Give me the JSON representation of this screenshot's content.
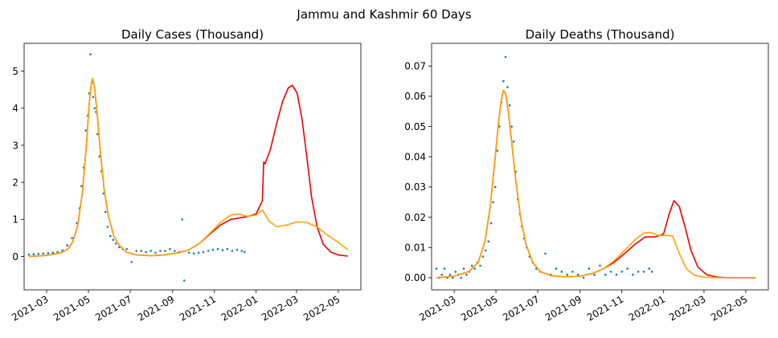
{
  "figure": {
    "title": "Jammu and Kashmir 60 Days"
  },
  "colors": {
    "observed": "#1f77b4",
    "model_red": "#ee0000",
    "model_orange": "#ffa500"
  },
  "chart_data": [
    {
      "type": "line",
      "title": "Daily Cases (Thousand)",
      "xlabel": "",
      "ylabel": "",
      "x_axis": "date",
      "xlim": [
        "2021-01-27",
        "2022-06-03"
      ],
      "ylim": [
        -0.9,
        5.75
      ],
      "x_ticks": [
        "2021-03-01",
        "2021-05-01",
        "2021-07-01",
        "2021-09-01",
        "2021-11-01",
        "2022-01-01",
        "2022-03-01",
        "2022-05-01"
      ],
      "x_tick_labels": [
        "2021-03",
        "2021-05",
        "2021-07",
        "2021-09",
        "2021-11",
        "2022-01",
        "2022-03",
        "2022-05"
      ],
      "y_ticks": [
        0,
        1,
        2,
        3,
        4,
        5
      ],
      "y_tick_labels": [
        "0",
        "1",
        "2",
        "3",
        "4",
        "5"
      ],
      "series": [
        {
          "kind": "scatter",
          "color_key": "observed",
          "x": [
            "2021-02-03",
            "2021-02-10",
            "2021-02-17",
            "2021-02-24",
            "2021-03-03",
            "2021-03-10",
            "2021-03-17",
            "2021-03-24",
            "2021-03-31",
            "2021-04-07",
            "2021-04-14",
            "2021-04-18",
            "2021-04-21",
            "2021-04-24",
            "2021-04-27",
            "2021-04-30",
            "2021-05-02",
            "2021-05-04",
            "2021-05-06",
            "2021-05-08",
            "2021-05-10",
            "2021-05-12",
            "2021-05-14",
            "2021-05-17",
            "2021-05-20",
            "2021-05-23",
            "2021-05-26",
            "2021-05-29",
            "2021-06-02",
            "2021-06-06",
            "2021-06-10",
            "2021-06-15",
            "2021-06-20",
            "2021-06-26",
            "2021-07-03",
            "2021-07-10",
            "2021-07-17",
            "2021-07-24",
            "2021-07-31",
            "2021-08-07",
            "2021-08-14",
            "2021-08-21",
            "2021-08-28",
            "2021-09-04",
            "2021-09-11",
            "2021-09-15",
            "2021-09-18",
            "2021-09-25",
            "2021-10-02",
            "2021-10-09",
            "2021-10-16",
            "2021-10-23",
            "2021-10-30",
            "2021-11-06",
            "2021-11-13",
            "2021-11-20",
            "2021-11-27",
            "2021-12-04",
            "2021-12-11",
            "2021-12-15"
          ],
          "values": [
            0.05,
            0.06,
            0.07,
            0.08,
            0.09,
            0.1,
            0.12,
            0.16,
            0.3,
            0.5,
            0.9,
            1.3,
            1.9,
            2.4,
            3.4,
            3.8,
            4.4,
            5.45,
            4.7,
            4.3,
            4.0,
            3.9,
            3.3,
            2.7,
            2.3,
            1.7,
            1.2,
            0.8,
            0.55,
            0.45,
            0.35,
            0.25,
            0.2,
            0.2,
            -0.15,
            0.15,
            0.15,
            0.12,
            0.15,
            0.1,
            0.15,
            0.15,
            0.2,
            0.15,
            0.12,
            1.0,
            -0.65,
            0.1,
            0.08,
            0.1,
            0.12,
            0.15,
            0.18,
            0.2,
            0.17,
            0.2,
            0.15,
            0.18,
            0.15,
            0.12
          ]
        },
        {
          "kind": "line",
          "color_key": "model_red",
          "x": [
            "2021-02-03",
            "2021-03-01",
            "2021-03-22",
            "2021-04-01",
            "2021-04-08",
            "2021-04-15",
            "2021-04-22",
            "2021-04-28",
            "2021-05-02",
            "2021-05-05",
            "2021-05-07",
            "2021-05-10",
            "2021-05-14",
            "2021-05-19",
            "2021-05-24",
            "2021-05-30",
            "2021-06-07",
            "2021-06-15",
            "2021-06-25",
            "2021-07-10",
            "2021-08-01",
            "2021-08-20",
            "2021-09-10",
            "2021-09-25",
            "2021-10-10",
            "2021-10-25",
            "2021-11-10",
            "2021-11-25",
            "2021-12-08",
            "2021-12-20",
            "2022-01-01",
            "2022-01-10",
            "2022-01-12",
            "2022-01-14",
            "2022-01-22",
            "2022-01-31",
            "2022-02-09",
            "2022-02-17",
            "2022-02-23",
            "2022-03-02",
            "2022-03-09",
            "2022-03-16",
            "2022-03-23",
            "2022-03-31",
            "2022-04-09",
            "2022-04-20",
            "2022-05-01",
            "2022-05-15"
          ],
          "values": [
            0.0,
            0.03,
            0.1,
            0.2,
            0.4,
            0.8,
            1.7,
            3.0,
            4.1,
            4.65,
            4.8,
            4.55,
            3.8,
            2.7,
            1.8,
            1.1,
            0.55,
            0.3,
            0.12,
            0.04,
            0.02,
            0.04,
            0.1,
            0.18,
            0.35,
            0.6,
            0.85,
            1.0,
            1.04,
            1.08,
            1.15,
            1.5,
            2.55,
            2.5,
            2.9,
            3.6,
            4.2,
            4.55,
            4.62,
            4.4,
            3.7,
            2.7,
            1.6,
            0.8,
            0.33,
            0.12,
            0.04,
            0.01
          ]
        },
        {
          "kind": "line",
          "color_key": "model_orange",
          "x": [
            "2021-02-03",
            "2021-03-01",
            "2021-03-22",
            "2021-04-01",
            "2021-04-08",
            "2021-04-15",
            "2021-04-22",
            "2021-04-28",
            "2021-05-02",
            "2021-05-05",
            "2021-05-07",
            "2021-05-10",
            "2021-05-14",
            "2021-05-19",
            "2021-05-24",
            "2021-05-30",
            "2021-06-07",
            "2021-06-15",
            "2021-06-25",
            "2021-07-10",
            "2021-08-01",
            "2021-08-20",
            "2021-09-10",
            "2021-09-25",
            "2021-10-10",
            "2021-10-25",
            "2021-11-10",
            "2021-11-25",
            "2021-12-08",
            "2021-12-20",
            "2022-01-01",
            "2022-01-10",
            "2022-01-20",
            "2022-01-31",
            "2022-02-15",
            "2022-03-01",
            "2022-03-15",
            "2022-03-31",
            "2022-04-15",
            "2022-05-01",
            "2022-05-15"
          ],
          "values": [
            0.0,
            0.03,
            0.1,
            0.2,
            0.4,
            0.8,
            1.7,
            3.0,
            4.1,
            4.65,
            4.8,
            4.55,
            3.8,
            2.7,
            1.8,
            1.1,
            0.55,
            0.3,
            0.12,
            0.04,
            0.02,
            0.04,
            0.1,
            0.18,
            0.35,
            0.62,
            0.92,
            1.12,
            1.14,
            1.08,
            1.12,
            1.25,
            0.95,
            0.8,
            0.85,
            0.93,
            0.92,
            0.8,
            0.58,
            0.38,
            0.18
          ]
        }
      ]
    },
    {
      "type": "line",
      "title": "Daily Deaths (Thousand)",
      "xlabel": "",
      "ylabel": "",
      "x_axis": "date",
      "xlim": [
        "2021-01-27",
        "2022-06-03"
      ],
      "ylim": [
        -0.004,
        0.0775
      ],
      "x_ticks": [
        "2021-03-01",
        "2021-05-01",
        "2021-07-01",
        "2021-09-01",
        "2021-11-01",
        "2022-01-01",
        "2022-03-01",
        "2022-05-01"
      ],
      "x_tick_labels": [
        "2021-03",
        "2021-05",
        "2021-07",
        "2021-09",
        "2021-11",
        "2022-01",
        "2022-03",
        "2022-05"
      ],
      "y_ticks": [
        0.0,
        0.01,
        0.02,
        0.03,
        0.04,
        0.05,
        0.06,
        0.07
      ],
      "y_tick_labels": [
        "0.00",
        "0.01",
        "0.02",
        "0.03",
        "0.04",
        "0.05",
        "0.06",
        "0.07"
      ],
      "series": [
        {
          "kind": "scatter",
          "color_key": "observed",
          "x": [
            "2021-02-03",
            "2021-02-07",
            "2021-02-11",
            "2021-02-15",
            "2021-02-19",
            "2021-02-23",
            "2021-02-27",
            "2021-03-03",
            "2021-03-07",
            "2021-03-11",
            "2021-03-15",
            "2021-03-19",
            "2021-03-23",
            "2021-03-27",
            "2021-03-31",
            "2021-04-04",
            "2021-04-08",
            "2021-04-12",
            "2021-04-16",
            "2021-04-20",
            "2021-04-24",
            "2021-04-27",
            "2021-04-30",
            "2021-05-03",
            "2021-05-06",
            "2021-05-09",
            "2021-05-12",
            "2021-05-15",
            "2021-05-18",
            "2021-05-21",
            "2021-05-24",
            "2021-05-27",
            "2021-05-30",
            "2021-06-02",
            "2021-06-05",
            "2021-06-08",
            "2021-06-11",
            "2021-06-15",
            "2021-06-19",
            "2021-06-24",
            "2021-06-29",
            "2021-07-05",
            "2021-07-12",
            "2021-07-20",
            "2021-07-28",
            "2021-08-05",
            "2021-08-13",
            "2021-08-21",
            "2021-08-29",
            "2021-09-06",
            "2021-09-14",
            "2021-09-22",
            "2021-09-30",
            "2021-10-08",
            "2021-10-16",
            "2021-10-24",
            "2021-11-01",
            "2021-11-09",
            "2021-11-17",
            "2021-11-25",
            "2021-12-03",
            "2021-12-11",
            "2021-12-15"
          ],
          "values": [
            0.003,
            0.0,
            0.001,
            0.003,
            0.0,
            0.001,
            0.0,
            0.002,
            0.001,
            0.0,
            0.003,
            0.001,
            0.002,
            0.004,
            0.003,
            0.005,
            0.004,
            0.007,
            0.009,
            0.012,
            0.018,
            0.025,
            0.03,
            0.042,
            0.05,
            0.058,
            0.065,
            0.073,
            0.063,
            0.057,
            0.05,
            0.045,
            0.035,
            0.026,
            0.021,
            0.017,
            0.013,
            0.01,
            0.007,
            0.005,
            0.003,
            0.002,
            0.008,
            0.001,
            0.003,
            0.002,
            0.001,
            0.002,
            0.001,
            0.0,
            0.003,
            0.001,
            0.004,
            0.001,
            0.002,
            0.001,
            0.002,
            0.003,
            0.001,
            0.002,
            0.002,
            0.003,
            0.002
          ]
        },
        {
          "kind": "line",
          "color_key": "model_red",
          "x": [
            "2021-02-03",
            "2021-03-01",
            "2021-03-22",
            "2021-04-05",
            "2021-04-15",
            "2021-04-23",
            "2021-04-30",
            "2021-05-05",
            "2021-05-09",
            "2021-05-12",
            "2021-05-15",
            "2021-05-19",
            "2021-05-24",
            "2021-05-30",
            "2021-06-06",
            "2021-06-14",
            "2021-06-24",
            "2021-07-05",
            "2021-07-20",
            "2021-08-10",
            "2021-09-01",
            "2021-09-20",
            "2021-10-05",
            "2021-10-20",
            "2021-11-05",
            "2021-11-20",
            "2021-12-05",
            "2021-12-20",
            "2022-01-01",
            "2022-01-09",
            "2022-01-16",
            "2022-01-24",
            "2022-02-01",
            "2022-02-10",
            "2022-02-20",
            "2022-03-05",
            "2022-03-20",
            "2022-04-05",
            "2022-05-15"
          ],
          "values": [
            0.0,
            0.0005,
            0.002,
            0.005,
            0.012,
            0.024,
            0.04,
            0.052,
            0.059,
            0.062,
            0.061,
            0.055,
            0.045,
            0.032,
            0.02,
            0.011,
            0.005,
            0.002,
            0.0007,
            0.0003,
            0.0005,
            0.0015,
            0.003,
            0.005,
            0.008,
            0.011,
            0.0135,
            0.0135,
            0.0145,
            0.021,
            0.0255,
            0.0235,
            0.017,
            0.009,
            0.0035,
            0.001,
            0.0002,
            0.0,
            0.0
          ]
        },
        {
          "kind": "line",
          "color_key": "model_orange",
          "x": [
            "2021-02-03",
            "2021-03-01",
            "2021-03-22",
            "2021-04-05",
            "2021-04-15",
            "2021-04-23",
            "2021-04-30",
            "2021-05-05",
            "2021-05-09",
            "2021-05-12",
            "2021-05-15",
            "2021-05-19",
            "2021-05-24",
            "2021-05-30",
            "2021-06-06",
            "2021-06-14",
            "2021-06-24",
            "2021-07-05",
            "2021-07-20",
            "2021-08-10",
            "2021-09-01",
            "2021-09-20",
            "2021-10-05",
            "2021-10-20",
            "2021-11-05",
            "2021-11-20",
            "2021-12-03",
            "2021-12-12",
            "2021-12-25",
            "2022-01-05",
            "2022-01-14",
            "2022-01-24",
            "2022-02-03",
            "2022-02-15",
            "2022-03-01",
            "2022-03-20",
            "2022-05-15"
          ],
          "values": [
            0.0,
            0.0005,
            0.002,
            0.005,
            0.012,
            0.024,
            0.04,
            0.052,
            0.059,
            0.062,
            0.061,
            0.055,
            0.045,
            0.032,
            0.02,
            0.011,
            0.005,
            0.002,
            0.0007,
            0.0003,
            0.0005,
            0.0015,
            0.003,
            0.0055,
            0.009,
            0.0125,
            0.0148,
            0.015,
            0.014,
            0.014,
            0.0138,
            0.008,
            0.003,
            0.0008,
            0.0002,
            0.0,
            0.0
          ]
        }
      ]
    }
  ]
}
